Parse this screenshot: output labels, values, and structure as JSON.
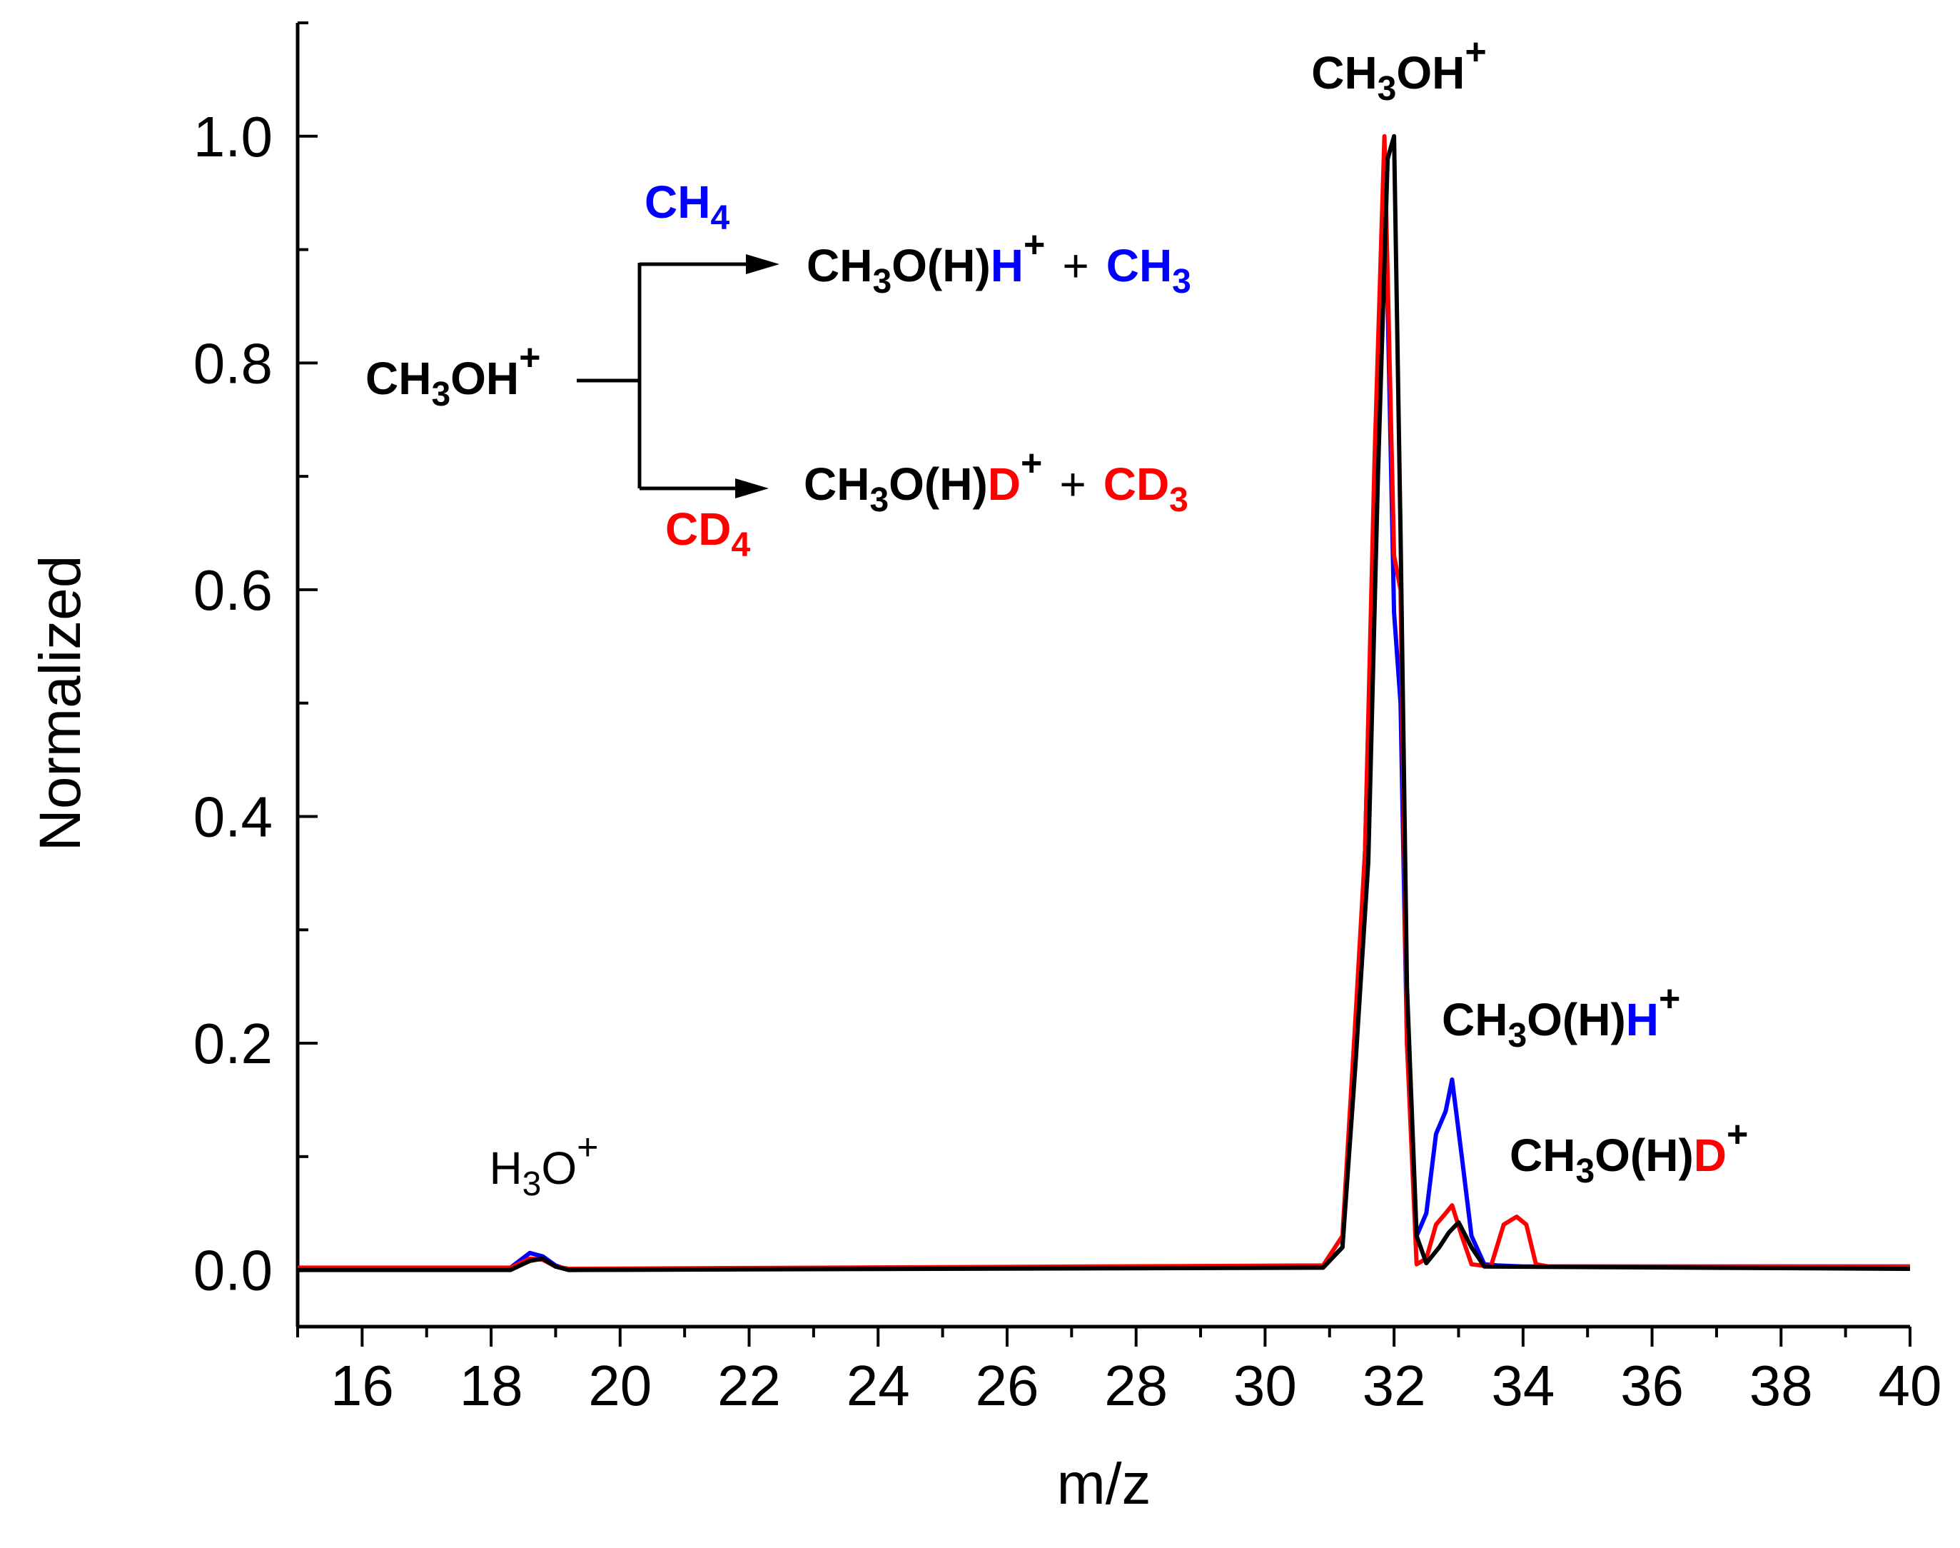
{
  "chart_data": {
    "type": "line",
    "xlabel": "m/z",
    "ylabel": "Normalized",
    "xlim": [
      15,
      40
    ],
    "ylim": [
      -0.05,
      1.1
    ],
    "x_ticks": [
      16,
      18,
      20,
      22,
      24,
      26,
      28,
      30,
      32,
      34,
      36,
      38,
      40
    ],
    "y_ticks": [
      0.0,
      0.2,
      0.4,
      0.6,
      0.8,
      1.0
    ],
    "x_tick_labels": [
      "16",
      "18",
      "20",
      "22",
      "24",
      "26",
      "28",
      "30",
      "32",
      "34",
      "36",
      "38",
      "40"
    ],
    "y_tick_labels": [
      "0.0",
      "0.2",
      "0.4",
      "0.6",
      "0.8",
      "1.0"
    ],
    "grid": false,
    "series": [
      {
        "color": "#0000ff",
        "x": [
          15,
          18.3,
          18.6,
          18.8,
          19.0,
          19.2,
          30.9,
          31.2,
          31.4,
          31.55,
          31.7,
          31.85,
          32.0,
          32.1,
          32.2,
          32.35,
          32.5,
          32.65,
          32.8,
          32.9,
          33.05,
          33.2,
          33.4,
          33.6,
          34.0,
          40
        ],
        "values": [
          0.0,
          0.002,
          0.015,
          0.012,
          0.004,
          0.0,
          0.003,
          0.02,
          0.2,
          0.37,
          0.7,
          0.99,
          0.58,
          0.5,
          0.2,
          0.03,
          0.05,
          0.12,
          0.14,
          0.168,
          0.1,
          0.03,
          0.005,
          0.004,
          0.003,
          0.003
        ]
      },
      {
        "color": "#ff0000",
        "x": [
          15,
          18.3,
          18.6,
          18.8,
          19.0,
          19.2,
          30.9,
          31.2,
          31.4,
          31.55,
          31.7,
          31.85,
          32.0,
          32.1,
          32.2,
          32.35,
          32.5,
          32.65,
          32.8,
          32.9,
          33.05,
          33.2,
          33.5,
          33.7,
          33.9,
          34.05,
          34.2,
          34.4,
          40
        ],
        "values": [
          0.002,
          0.002,
          0.01,
          0.009,
          0.003,
          0.001,
          0.004,
          0.03,
          0.22,
          0.37,
          0.72,
          1.0,
          0.63,
          0.6,
          0.2,
          0.005,
          0.01,
          0.04,
          0.05,
          0.057,
          0.03,
          0.005,
          0.003,
          0.04,
          0.047,
          0.04,
          0.005,
          0.003,
          0.003
        ]
      },
      {
        "color": "#000000",
        "x": [
          15,
          18.3,
          18.6,
          18.8,
          19.0,
          19.2,
          30.9,
          31.2,
          31.4,
          31.6,
          31.75,
          31.9,
          32.0,
          32.1,
          32.2,
          32.35,
          32.5,
          32.7,
          32.85,
          33.0,
          33.2,
          33.4,
          40
        ],
        "values": [
          0.0,
          0.0,
          0.008,
          0.01,
          0.003,
          0.0,
          0.002,
          0.02,
          0.18,
          0.36,
          0.7,
          0.98,
          1.0,
          0.65,
          0.25,
          0.03,
          0.006,
          0.02,
          0.033,
          0.042,
          0.02,
          0.003,
          0.001
        ]
      }
    ],
    "annotations": {
      "peak_main": {
        "base": "CH",
        "sub": "3",
        "rest": "OH",
        "sup": "+"
      },
      "peak_h3o": {
        "base": "H",
        "sub": "3",
        "rest": "O",
        "sup": "+"
      },
      "peak_ch3ohh": {
        "base": "CH",
        "sub": "3",
        "rest": "O(H)",
        "colored": "H",
        "sup": "+"
      },
      "peak_ch3ohd": {
        "base": "CH",
        "sub": "3",
        "rest": "O(H)",
        "colored": "D",
        "sup": "+"
      },
      "scheme": {
        "reactant": {
          "base": "CH",
          "sub": "3",
          "rest": "OH",
          "sup": "+"
        },
        "upper_reagent": {
          "base": "CH",
          "sub": "4"
        },
        "lower_reagent": {
          "base": "CD",
          "sub": "4"
        },
        "upper_product": {
          "base": "CH",
          "sub": "3",
          "rest": "O(H)",
          "colored": "H",
          "sup": "+",
          "plus": "+",
          "radical_base": "CH",
          "radical_sub": "3"
        },
        "lower_product": {
          "base": "CH",
          "sub": "3",
          "rest": "O(H)",
          "colored": "D",
          "sup": "+",
          "plus": "+",
          "radical_base": "CD",
          "radical_sub": "3"
        }
      }
    },
    "colors": {
      "blue": "#0000ff",
      "red": "#ff0000",
      "black": "#000000"
    }
  }
}
